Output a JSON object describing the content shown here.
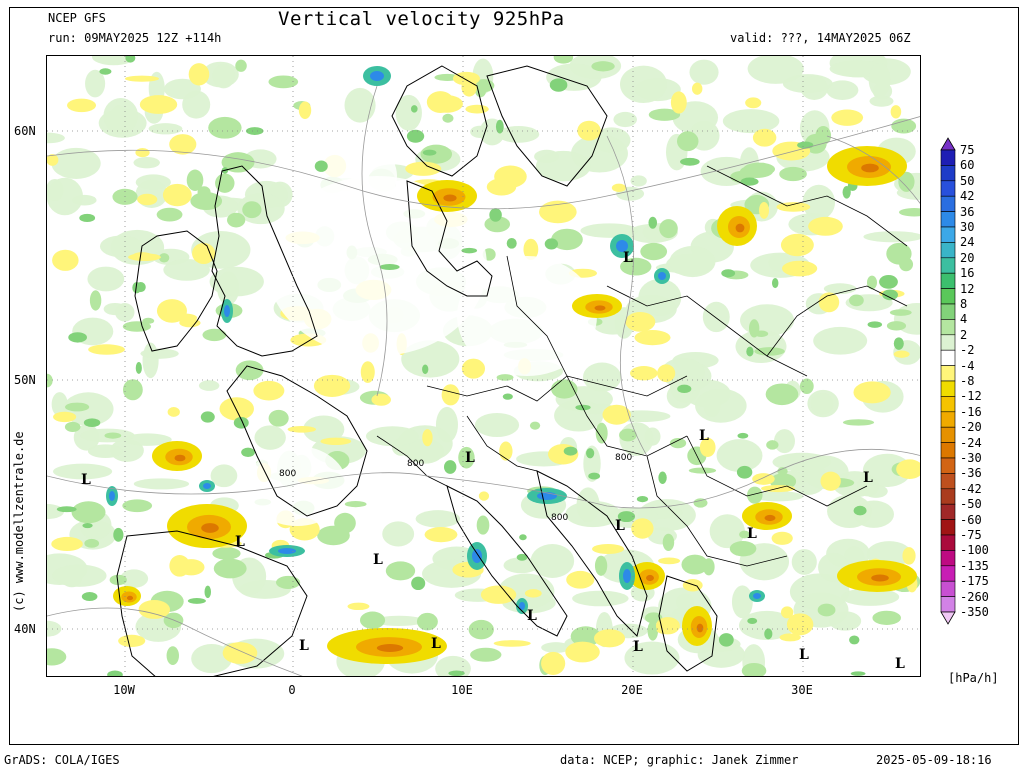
{
  "header": {
    "model": "NCEP GFS",
    "run": "run: 09MAY2025 12Z +114h",
    "title": "Vertical velocity 925hPa",
    "valid": "valid: ???, 14MAY2025 06Z"
  },
  "footer": {
    "grads": "GrADS: COLA/IGES",
    "data": "data: NCEP; graphic: Janek Zimmer",
    "timestamp": "2025-05-09-18:16"
  },
  "side_credit": "(c) www.modellzentrale.de",
  "axes": {
    "lat_labels": [
      "60N",
      "50N",
      "40N"
    ],
    "lon_labels": [
      "10W",
      "0",
      "10E",
      "20E",
      "30E"
    ]
  },
  "colorbar": {
    "unit": "[hPa/h]",
    "levels": [
      "75",
      "60",
      "50",
      "42",
      "36",
      "30",
      "24",
      "20",
      "16",
      "12",
      "8",
      "4",
      "2",
      "-2",
      "-4",
      "-8",
      "-12",
      "-16",
      "-20",
      "-24",
      "-30",
      "-36",
      "-42",
      "-50",
      "-60",
      "-75",
      "-100",
      "-135",
      "-175",
      "-260",
      "-350"
    ],
    "colors": [
      "#1e1eb4",
      "#1e3cc8",
      "#2850dc",
      "#2a6ee0",
      "#2d8ae8",
      "#3ca8e8",
      "#3ab4c8",
      "#3cbfa0",
      "#3cbf6e",
      "#5ac85a",
      "#82d27a",
      "#b4e6a0",
      "#dcf2d2",
      "#ffffff",
      "#fff57a",
      "#f0dc00",
      "#f5c300",
      "#f0aa00",
      "#e69100",
      "#dc7800",
      "#d26414",
      "#be501e",
      "#aa3c1e",
      "#a02828",
      "#a01414",
      "#aa0a3c",
      "#be0a82",
      "#c81eb4",
      "#c850d2",
      "#d282e6",
      "#f0c8f5"
    ],
    "top_arrow_color": "#7832c8",
    "bottom_arrow_color": "#f0c8f5"
  },
  "map": {
    "low_symbol": "L",
    "contour_label": "800",
    "colors": {
      "green_light": "#dcf2d2",
      "green_mid": "#b4e6a0",
      "green": "#82d27a",
      "teal": "#3cbfa0",
      "blue": "#2d8ae8",
      "yellow": "#fff57a",
      "yellow_dark": "#f0dc00",
      "orange": "#f0aa00",
      "orange_dark": "#dc7800"
    }
  }
}
